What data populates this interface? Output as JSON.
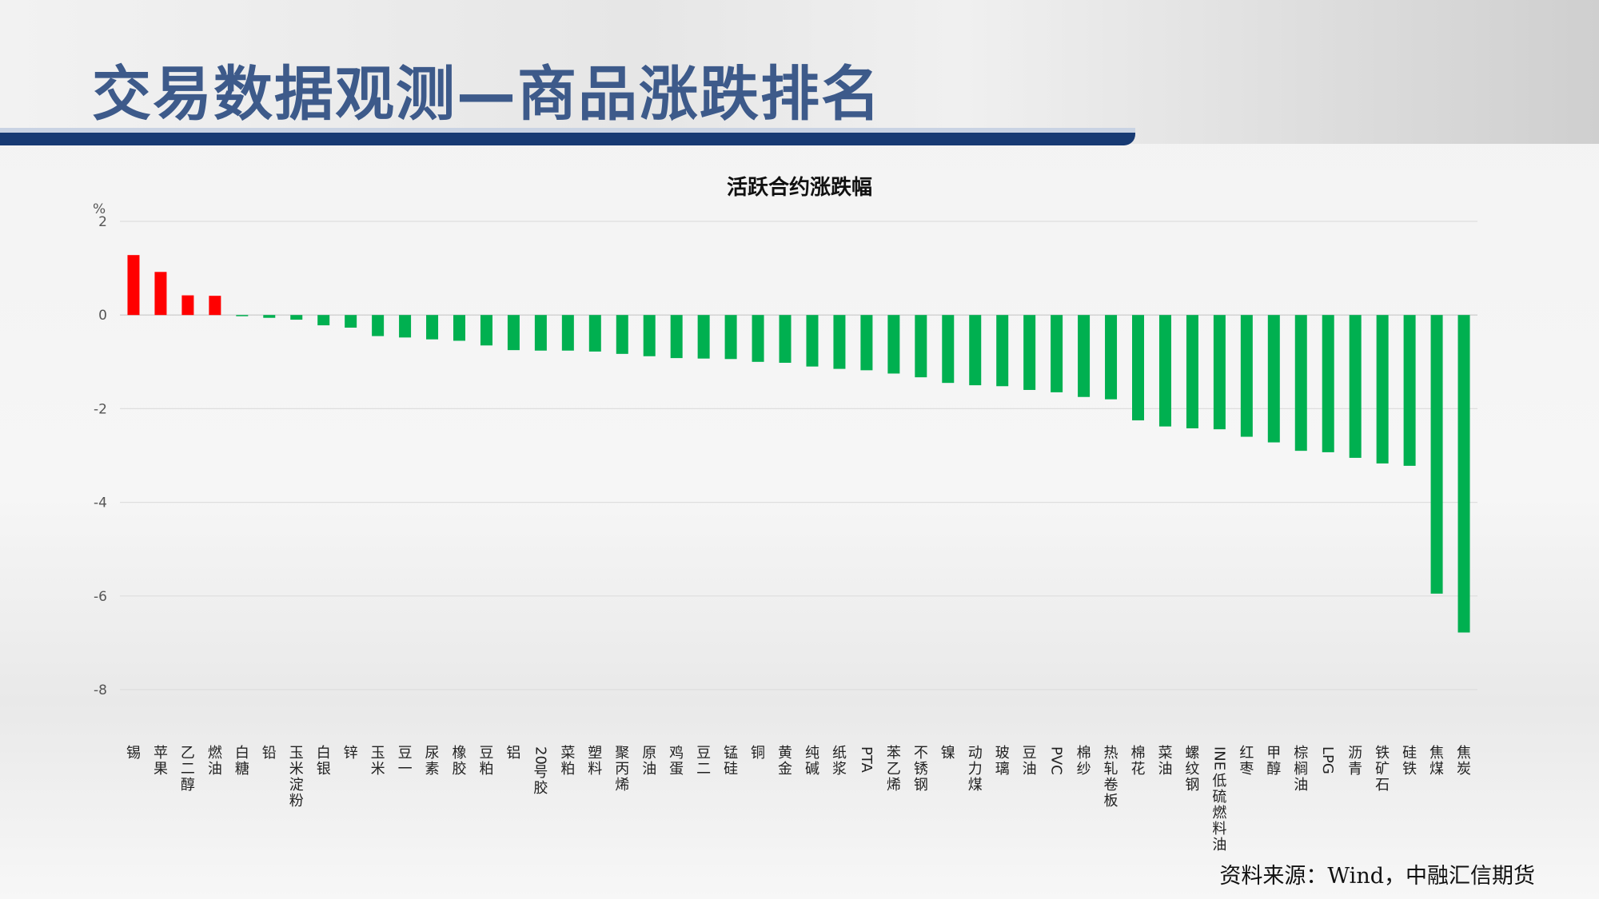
{
  "header": {
    "title": "交易数据观测—商品涨跌排名"
  },
  "source": "资料来源：Wind，中融汇信期货",
  "colors": {
    "up": "#ff0000",
    "down": "#00b050",
    "bar": "#173a73"
  },
  "chart_data": {
    "type": "bar",
    "title": "活跃合约涨跌幅",
    "ylabel": "%",
    "ylim": [
      -8,
      2
    ],
    "yticks": [
      2,
      0,
      -2,
      -4,
      -6,
      -8
    ],
    "grid": true,
    "categories": [
      "锡",
      "苹果",
      "乙二醇",
      "燃油",
      "白糖",
      "铅",
      "玉米淀粉",
      "白银",
      "锌",
      "玉米",
      "豆一",
      "尿素",
      "橡胶",
      "豆粕",
      "铝",
      "20号胶",
      "菜粕",
      "塑料",
      "聚丙烯",
      "原油",
      "鸡蛋",
      "豆二",
      "锰硅",
      "铜",
      "黄金",
      "纯碱",
      "纸浆",
      "PTA",
      "苯乙烯",
      "不锈钢",
      "镍",
      "动力煤",
      "玻璃",
      "豆油",
      "PVC",
      "棉纱",
      "热轧卷板",
      "棉花",
      "菜油",
      "螺纹钢",
      "INE低硫燃料油",
      "红枣",
      "甲醇",
      "棕榈油",
      "LPG",
      "沥青",
      "铁矿石",
      "硅铁",
      "焦煤",
      "焦炭"
    ],
    "values": [
      1.28,
      0.92,
      0.42,
      0.41,
      -0.02,
      -0.06,
      -0.1,
      -0.22,
      -0.27,
      -0.45,
      -0.48,
      -0.52,
      -0.55,
      -0.65,
      -0.75,
      -0.76,
      -0.76,
      -0.78,
      -0.83,
      -0.88,
      -0.92,
      -0.93,
      -0.94,
      -1.0,
      -1.02,
      -1.1,
      -1.15,
      -1.18,
      -1.25,
      -1.33,
      -1.45,
      -1.5,
      -1.52,
      -1.6,
      -1.65,
      -1.75,
      -1.8,
      -2.25,
      -2.38,
      -2.42,
      -2.44,
      -2.6,
      -2.72,
      -2.9,
      -2.93,
      -3.05,
      -3.17,
      -3.22,
      -5.95,
      -6.78
    ]
  }
}
